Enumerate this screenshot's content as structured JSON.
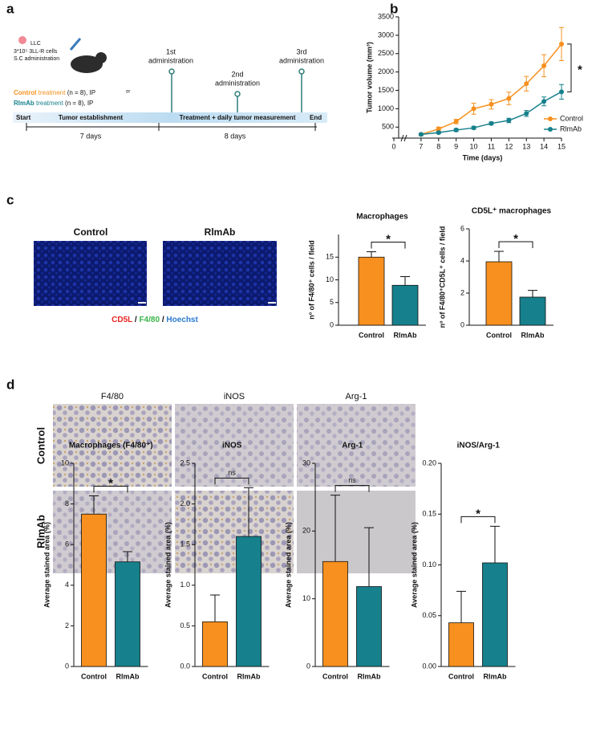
{
  "panel_labels": [
    "a",
    "b",
    "c",
    "d"
  ],
  "timeline": {
    "injection": [
      "LLC",
      "3*10⁵ 3LL-R cells",
      "S.C administration"
    ],
    "groups": [
      {
        "name": "Control",
        "label": "treatment",
        "detail": "(n = 8), IP"
      },
      {
        "name": "RlmAb",
        "label": "treatment",
        "detail": "(n = 8), IP"
      }
    ],
    "or": "or",
    "administrations": [
      [
        "1st",
        "administration"
      ],
      [
        "2nd",
        "administration"
      ],
      [
        "3rd",
        "administration"
      ]
    ],
    "phases": {
      "start": "Start",
      "establishment": "Tumor establishment",
      "treatment": "Treatment + daily tumor measurement",
      "end": "End"
    },
    "durations": [
      "7 days",
      "8 days"
    ]
  },
  "micrographs": {
    "c_labels": [
      "Control",
      "RlmAb"
    ],
    "stain_legend": [
      "CD5L",
      "/",
      "F4/80",
      "/",
      "Hoechst"
    ],
    "d_columns": [
      "F4/80",
      "iNOS",
      "Arg-1"
    ],
    "d_rows": [
      "Control",
      "RlmAb"
    ]
  },
  "chart_data": [
    {
      "type": "line",
      "xlabel": "Time (days)",
      "ylabel": "Tumor volume (mm³)",
      "x": [
        7,
        8,
        9,
        10,
        11,
        12,
        13,
        14,
        15
      ],
      "xlim": [
        6,
        15
      ],
      "xticks": [
        0,
        7,
        8,
        9,
        10,
        11,
        12,
        13,
        14,
        15
      ],
      "axis_break": true,
      "ylim": [
        200,
        3500
      ],
      "yticks": [
        500,
        1000,
        1500,
        2000,
        2500,
        3000,
        3500
      ],
      "series": [
        {
          "name": "Control",
          "color": "#f7901e",
          "values": [
            300,
            450,
            650,
            1000,
            1120,
            1280,
            1680,
            2170,
            2760
          ],
          "errors": [
            30,
            50,
            60,
            150,
            130,
            170,
            200,
            300,
            450
          ]
        },
        {
          "name": "RlmAb",
          "color": "#16808c",
          "values": [
            300,
            350,
            420,
            480,
            600,
            680,
            870,
            1200,
            1460
          ],
          "errors": [
            30,
            30,
            40,
            40,
            40,
            60,
            80,
            120,
            200
          ]
        }
      ],
      "legend": "lower right",
      "annotation": "*"
    },
    {
      "type": "bar",
      "title": "Macrophages",
      "ylabel": "nº of F4/80⁺ cells / field",
      "categories": [
        "Control",
        "RlmAb"
      ],
      "values": [
        15,
        8.8
      ],
      "errors": [
        1.2,
        1.9
      ],
      "colors": [
        "#f7901e",
        "#16808c"
      ],
      "ylim": [
        0,
        20
      ],
      "yticks": [
        0,
        5,
        10,
        15
      ],
      "annotation": "*"
    },
    {
      "type": "bar",
      "title": "CD5L⁺ macrophages",
      "ylabel": "nº of F4/80⁺CD5L⁺ cells / field",
      "categories": [
        "Control",
        "RlmAb"
      ],
      "values": [
        3.95,
        1.75
      ],
      "errors": [
        0.65,
        0.42
      ],
      "colors": [
        "#f7901e",
        "#16808c"
      ],
      "ylim": [
        0,
        6
      ],
      "yticks": [
        0,
        2,
        4,
        6
      ],
      "annotation": "*"
    },
    {
      "type": "bar",
      "title": "Macrophages (F4/80⁺)",
      "ylabel": "Average stained area (%)",
      "categories": [
        "Control",
        "RlmAb"
      ],
      "values": [
        7.5,
        5.15
      ],
      "errors": [
        0.9,
        0.5
      ],
      "colors": [
        "#f7901e",
        "#16808c"
      ],
      "ylim": [
        0,
        10
      ],
      "yticks": [
        0,
        2,
        4,
        6,
        8,
        10
      ],
      "annotation": "*"
    },
    {
      "type": "bar",
      "title": "iNOS",
      "ylabel": "Average stained area (%)",
      "categories": [
        "Control",
        "RlmAb"
      ],
      "values": [
        0.55,
        1.6
      ],
      "errors": [
        0.33,
        0.6
      ],
      "colors": [
        "#f7901e",
        "#16808c"
      ],
      "ylim": [
        0,
        2.5
      ],
      "yticks": [
        {
          "value": 0,
          "label": "0.0"
        },
        0.5,
        {
          "value": 1,
          "label": "1.0"
        },
        1.5,
        {
          "value": 2,
          "label": "2.0"
        },
        2.5
      ],
      "annotation": "ns"
    },
    {
      "type": "bar",
      "title": "Arg-1",
      "ylabel": "Average stained area (%)",
      "categories": [
        "Control",
        "RlmAb"
      ],
      "values": [
        15.5,
        11.8
      ],
      "errors": [
        9.8,
        8.7
      ],
      "colors": [
        "#f7901e",
        "#16808c"
      ],
      "ylim": [
        0,
        30
      ],
      "yticks": [
        0,
        10,
        20,
        30
      ],
      "annotation": "ns"
    },
    {
      "type": "bar",
      "title": "iNOS/Arg-1",
      "ylabel": "Average stained area (%)",
      "categories": [
        "Control",
        "RlmAb"
      ],
      "values": [
        0.043,
        0.102
      ],
      "errors": [
        0.031,
        0.036
      ],
      "colors": [
        "#f7901e",
        "#16808c"
      ],
      "ylim": [
        0,
        0.2
      ],
      "yticks": [
        {
          "value": 0,
          "label": "0.00"
        },
        0.05,
        {
          "value": 0.1,
          "label": "0.10"
        },
        0.15,
        {
          "value": 0.2,
          "label": "0.20"
        }
      ],
      "annotation": "*"
    }
  ]
}
